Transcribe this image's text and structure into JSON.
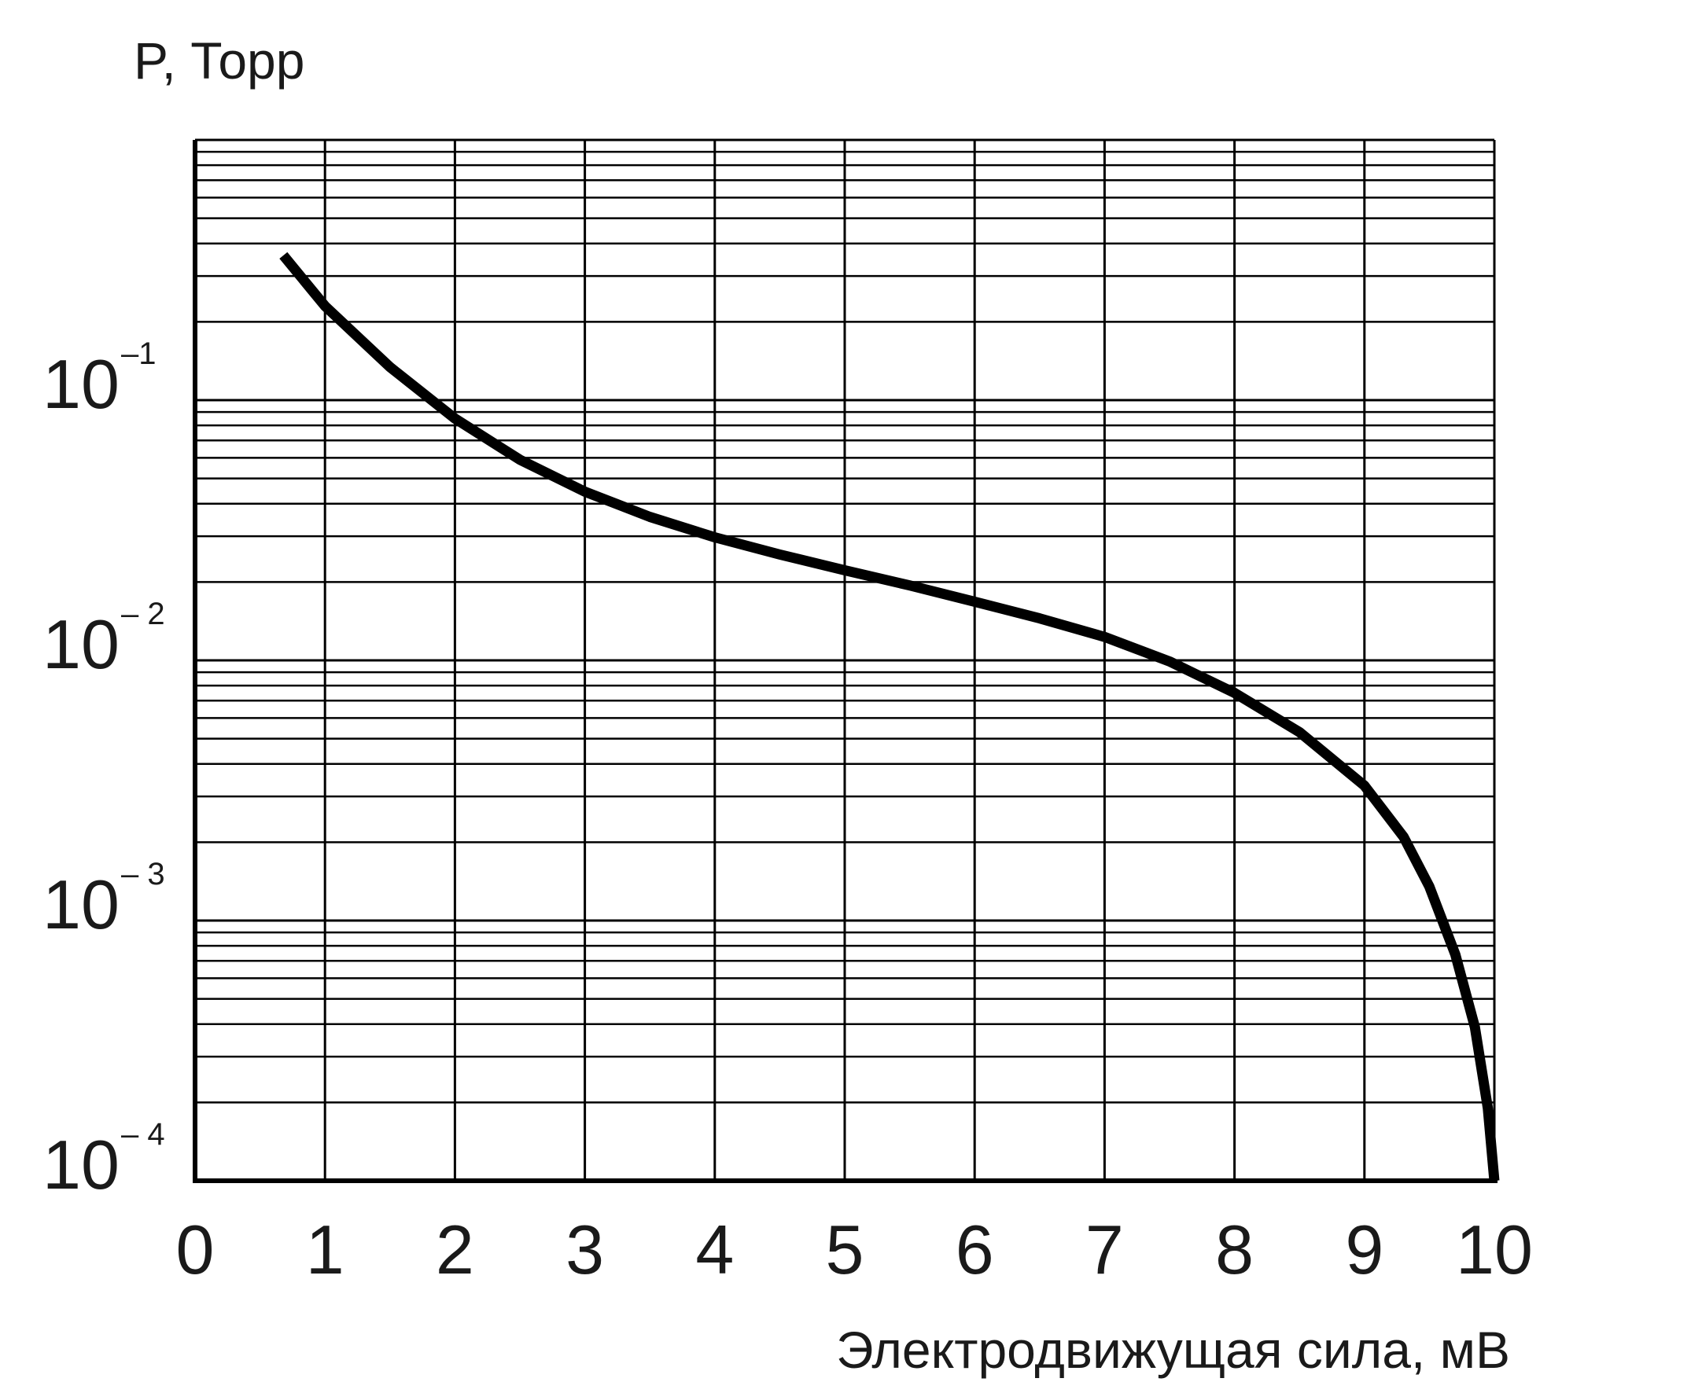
{
  "chart_data": {
    "type": "line",
    "title": "",
    "xlabel": "Электродвижущая сила, мВ",
    "ylabel": "P, Торр",
    "xlim": [
      0,
      10
    ],
    "ylim": [
      0.0001,
      1
    ],
    "yscale": "log",
    "grid": true,
    "x_ticks": [
      "0",
      "1",
      "2",
      "3",
      "4",
      "5",
      "6",
      "7",
      "8",
      "9",
      "10"
    ],
    "y_ticks": [
      {
        "value": 0.1,
        "base": "10",
        "exponent": "–1"
      },
      {
        "value": 0.01,
        "base": "10",
        "exponent": "– 2"
      },
      {
        "value": 0.001,
        "base": "10",
        "exponent": "– 3"
      },
      {
        "value": 0.0001,
        "base": "10",
        "exponent": "– 4"
      }
    ],
    "series": [
      {
        "x": [
          0.68,
          1.0,
          1.5,
          2.0,
          2.5,
          3.0,
          3.5,
          4.0,
          4.5,
          5.0,
          5.5,
          6.0,
          6.5,
          7.0,
          7.5,
          8.0,
          8.5,
          9.0,
          9.3,
          9.5,
          9.7,
          9.85,
          9.95,
          10.0
        ],
        "y": [
          0.36,
          0.23,
          0.134,
          0.085,
          0.059,
          0.0445,
          0.0356,
          0.0297,
          0.0255,
          0.0222,
          0.0194,
          0.0168,
          0.0145,
          0.0123,
          0.0099,
          0.0075,
          0.0053,
          0.0033,
          0.0021,
          0.00135,
          0.00074,
          0.00039,
          0.00019,
          0.0001
        ]
      }
    ],
    "colors": {
      "line": "#000000",
      "grid": "#000000",
      "text": "#1a1a1a"
    }
  }
}
